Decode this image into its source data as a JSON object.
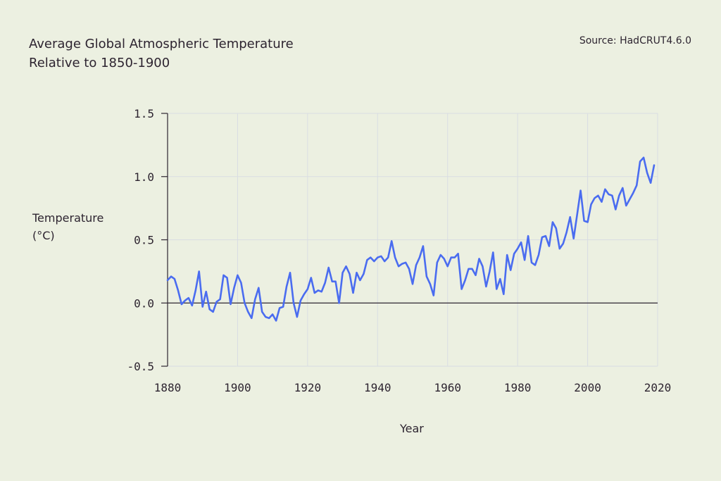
{
  "header": {
    "title_line1": "Average Global Atmospheric Temperature",
    "title_line2": "Relative to 1850-1900",
    "source": "Source: HadCRUT4.6.0"
  },
  "colors": {
    "background": "#ecf0e1",
    "line": "#4a6cf0",
    "grid": "#d9dde2",
    "axis": "#2d2430"
  },
  "chart_data": {
    "type": "line",
    "title": "Average Global Atmospheric Temperature Relative to 1850-1900",
    "xlabel": "Year",
    "ylabel_line1": "Temperature",
    "ylabel_line2": "(°C)",
    "xlim": [
      1880,
      2020
    ],
    "ylim": [
      -0.5,
      1.5
    ],
    "xticks": [
      1880,
      1900,
      1920,
      1940,
      1960,
      1980,
      2000,
      2020
    ],
    "xtick_labels": [
      "1880",
      "1900",
      "1920",
      "1940",
      "1960",
      "1980",
      "2000",
      "2020"
    ],
    "yticks": [
      -0.5,
      0.0,
      0.5,
      1.0,
      1.5
    ],
    "ytick_labels": [
      "-0.5",
      "0.0",
      "0.5",
      "1.0",
      "1.5"
    ],
    "grid": true,
    "series": [
      {
        "x": [
          1880,
          1881,
          1882,
          1883,
          1884,
          1885,
          1886,
          1887,
          1888,
          1889,
          1890,
          1891,
          1892,
          1893,
          1894,
          1895,
          1896,
          1897,
          1898,
          1899,
          1900,
          1901,
          1902,
          1903,
          1904,
          1905,
          1906,
          1907,
          1908,
          1909,
          1910,
          1911,
          1912,
          1913,
          1914,
          1915,
          1916,
          1917,
          1918,
          1919,
          1920,
          1921,
          1922,
          1923,
          1924,
          1925,
          1926,
          1927,
          1928,
          1929,
          1930,
          1931,
          1932,
          1933,
          1934,
          1935,
          1936,
          1937,
          1938,
          1939,
          1940,
          1941,
          1942,
          1943,
          1944,
          1945,
          1946,
          1947,
          1948,
          1949,
          1950,
          1951,
          1952,
          1953,
          1954,
          1955,
          1956,
          1957,
          1958,
          1959,
          1960,
          1961,
          1962,
          1963,
          1964,
          1965,
          1966,
          1967,
          1968,
          1969,
          1970,
          1971,
          1972,
          1973,
          1974,
          1975,
          1976,
          1977,
          1978,
          1979,
          1980,
          1981,
          1982,
          1983,
          1984,
          1985,
          1986,
          1987,
          1988,
          1989,
          1990,
          1991,
          1992,
          1993,
          1994,
          1995,
          1996,
          1997,
          1998,
          1999,
          2000,
          2001,
          2002,
          2003,
          2004,
          2005,
          2006,
          2007,
          2008,
          2009,
          2010,
          2011,
          2012,
          2013,
          2014,
          2015,
          2016,
          2017,
          2018,
          2019
        ],
        "values": [
          0.18,
          0.21,
          0.19,
          0.1,
          -0.01,
          0.02,
          0.04,
          -0.02,
          0.1,
          0.25,
          -0.03,
          0.09,
          -0.05,
          -0.07,
          0.01,
          0.03,
          0.22,
          0.2,
          -0.01,
          0.12,
          0.22,
          0.16,
          0.0,
          -0.07,
          -0.12,
          0.03,
          0.12,
          -0.07,
          -0.11,
          -0.12,
          -0.09,
          -0.14,
          -0.04,
          -0.03,
          0.13,
          0.24,
          0.0,
          -0.11,
          0.02,
          0.07,
          0.11,
          0.2,
          0.08,
          0.1,
          0.09,
          0.16,
          0.28,
          0.17,
          0.17,
          0.0,
          0.24,
          0.29,
          0.23,
          0.08,
          0.24,
          0.18,
          0.23,
          0.34,
          0.36,
          0.33,
          0.36,
          0.37,
          0.33,
          0.36,
          0.49,
          0.36,
          0.29,
          0.31,
          0.32,
          0.27,
          0.15,
          0.3,
          0.36,
          0.45,
          0.21,
          0.15,
          0.06,
          0.32,
          0.38,
          0.35,
          0.29,
          0.36,
          0.36,
          0.39,
          0.11,
          0.18,
          0.27,
          0.27,
          0.22,
          0.35,
          0.29,
          0.13,
          0.25,
          0.4,
          0.11,
          0.19,
          0.07,
          0.38,
          0.26,
          0.39,
          0.43,
          0.48,
          0.34,
          0.53,
          0.32,
          0.3,
          0.38,
          0.52,
          0.53,
          0.45,
          0.64,
          0.59,
          0.43,
          0.47,
          0.56,
          0.68,
          0.51,
          0.7,
          0.89,
          0.65,
          0.64,
          0.78,
          0.83,
          0.85,
          0.8,
          0.9,
          0.86,
          0.85,
          0.74,
          0.85,
          0.91,
          0.77,
          0.82,
          0.87,
          0.93,
          1.12,
          1.15,
          1.03,
          0.95,
          1.09
        ]
      }
    ]
  }
}
